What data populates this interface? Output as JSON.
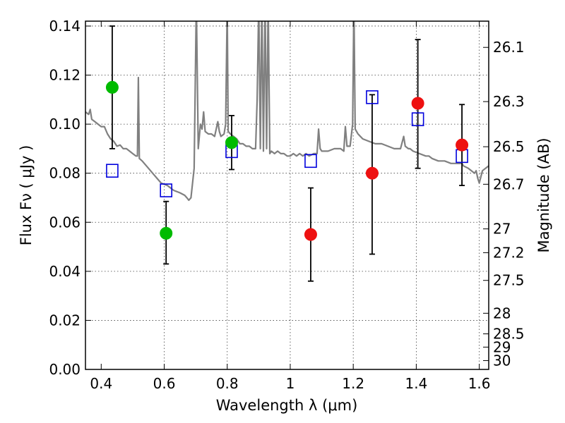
{
  "chart_data": {
    "type": "scatter",
    "xlabel": "Wavelength  λ (μm)",
    "ylabel": "Flux  Fν  ( μJy )",
    "ylabel_right": "Magnitude (AB)",
    "xlim": [
      0.35,
      1.63
    ],
    "ylim": [
      0.0,
      0.142
    ],
    "grid": true,
    "x_ticks": [
      0.4,
      0.6,
      0.8,
      1.0,
      1.2,
      1.4,
      1.6
    ],
    "x_tick_labels": [
      "0.4",
      "0.6",
      "0.8",
      "1",
      "1.2",
      "1.4",
      "1.6"
    ],
    "y_ticks": [
      0.0,
      0.02,
      0.04,
      0.06,
      0.08,
      0.1,
      0.12,
      0.14
    ],
    "y_tick_labels": [
      "0.00",
      "0.02",
      "0.04",
      "0.06",
      "0.08",
      "0.10",
      "0.12",
      "0.14"
    ],
    "right_ticks": [
      {
        "label": "26.1",
        "flux": 0.1313
      },
      {
        "label": "26.3",
        "flux": 0.1092
      },
      {
        "label": "26.5",
        "flux": 0.0908
      },
      {
        "label": "26.7",
        "flux": 0.0755
      },
      {
        "label": "27",
        "flux": 0.0573
      },
      {
        "label": "27.2",
        "flux": 0.0476
      },
      {
        "label": "27.5",
        "flux": 0.0363
      },
      {
        "label": "28",
        "flux": 0.0229
      },
      {
        "label": "28.5",
        "flux": 0.0145
      },
      {
        "label": "29",
        "flux": 0.0091
      },
      {
        "label": "30",
        "flux": 0.0036
      }
    ],
    "series": [
      {
        "kind": "points_with_errors",
        "color": "#00bb00",
        "points": [
          {
            "x": 0.435,
            "y": 0.115,
            "err_lo": 0.09,
            "err_hi": 0.14
          },
          {
            "x": 0.606,
            "y": 0.0555,
            "err_lo": 0.043,
            "err_hi": 0.0685
          },
          {
            "x": 0.814,
            "y": 0.0925,
            "err_lo": 0.0815,
            "err_hi": 0.1035
          }
        ]
      },
      {
        "kind": "points_with_errors",
        "color": "#ee1111",
        "points": [
          {
            "x": 1.065,
            "y": 0.055,
            "err_lo": 0.036,
            "err_hi": 0.074
          },
          {
            "x": 1.26,
            "y": 0.08,
            "err_lo": 0.047,
            "err_hi": 0.112
          },
          {
            "x": 1.405,
            "y": 0.1085,
            "err_lo": 0.082,
            "err_hi": 0.1345
          },
          {
            "x": 1.545,
            "y": 0.0915,
            "err_lo": 0.075,
            "err_hi": 0.108
          }
        ]
      },
      {
        "kind": "model_squares",
        "color": "#0000dd",
        "points": [
          {
            "x": 0.435,
            "y": 0.081
          },
          {
            "x": 0.606,
            "y": 0.073
          },
          {
            "x": 0.814,
            "y": 0.089
          },
          {
            "x": 1.065,
            "y": 0.085
          },
          {
            "x": 1.26,
            "y": 0.111
          },
          {
            "x": 1.405,
            "y": 0.102
          },
          {
            "x": 1.545,
            "y": 0.087
          }
        ]
      },
      {
        "kind": "spectrum_line",
        "color": "#808080",
        "points": [
          [
            0.35,
            0.105
          ],
          [
            0.36,
            0.104
          ],
          [
            0.365,
            0.106
          ],
          [
            0.37,
            0.102
          ],
          [
            0.38,
            0.101
          ],
          [
            0.39,
            0.1
          ],
          [
            0.4,
            0.099
          ],
          [
            0.41,
            0.099
          ],
          [
            0.42,
            0.096
          ],
          [
            0.43,
            0.094
          ],
          [
            0.44,
            0.093
          ],
          [
            0.45,
            0.091
          ],
          [
            0.46,
            0.0915
          ],
          [
            0.47,
            0.09
          ],
          [
            0.48,
            0.09
          ],
          [
            0.49,
            0.089
          ],
          [
            0.5,
            0.088
          ],
          [
            0.51,
            0.087
          ],
          [
            0.515,
            0.087
          ],
          [
            0.518,
            0.119
          ],
          [
            0.521,
            0.086
          ],
          [
            0.53,
            0.085
          ],
          [
            0.55,
            0.082
          ],
          [
            0.57,
            0.079
          ],
          [
            0.59,
            0.076
          ],
          [
            0.61,
            0.075
          ],
          [
            0.63,
            0.073
          ],
          [
            0.65,
            0.072
          ],
          [
            0.665,
            0.071
          ],
          [
            0.672,
            0.07
          ],
          [
            0.678,
            0.069
          ],
          [
            0.685,
            0.07
          ],
          [
            0.695,
            0.082
          ],
          [
            0.702,
            0.15
          ],
          [
            0.708,
            0.09
          ],
          [
            0.715,
            0.1
          ],
          [
            0.72,
            0.098
          ],
          [
            0.725,
            0.105
          ],
          [
            0.73,
            0.097
          ],
          [
            0.74,
            0.096
          ],
          [
            0.75,
            0.096
          ],
          [
            0.76,
            0.095
          ],
          [
            0.77,
            0.101
          ],
          [
            0.775,
            0.097
          ],
          [
            0.78,
            0.095
          ],
          [
            0.79,
            0.096
          ],
          [
            0.795,
            0.1
          ],
          [
            0.8,
            0.148
          ],
          [
            0.803,
            0.097
          ],
          [
            0.81,
            0.096
          ],
          [
            0.82,
            0.095
          ],
          [
            0.83,
            0.094
          ],
          [
            0.84,
            0.092
          ],
          [
            0.85,
            0.092
          ],
          [
            0.86,
            0.091
          ],
          [
            0.87,
            0.091
          ],
          [
            0.88,
            0.09
          ],
          [
            0.89,
            0.09
          ],
          [
            0.895,
            0.11
          ],
          [
            0.9,
            0.15
          ],
          [
            0.905,
            0.09
          ],
          [
            0.91,
            0.15
          ],
          [
            0.915,
            0.089
          ],
          [
            0.92,
            0.15
          ],
          [
            0.925,
            0.09
          ],
          [
            0.93,
            0.15
          ],
          [
            0.935,
            0.088
          ],
          [
            0.94,
            0.089
          ],
          [
            0.95,
            0.088
          ],
          [
            0.96,
            0.089
          ],
          [
            0.97,
            0.088
          ],
          [
            0.98,
            0.088
          ],
          [
            0.99,
            0.087
          ],
          [
            1.0,
            0.087
          ],
          [
            1.01,
            0.088
          ],
          [
            1.02,
            0.087
          ],
          [
            1.03,
            0.088
          ],
          [
            1.04,
            0.087
          ],
          [
            1.05,
            0.088
          ],
          [
            1.06,
            0.087
          ],
          [
            1.075,
            0.088
          ],
          [
            1.085,
            0.088
          ],
          [
            1.09,
            0.098
          ],
          [
            1.095,
            0.09
          ],
          [
            1.1,
            0.089
          ],
          [
            1.12,
            0.089
          ],
          [
            1.14,
            0.09
          ],
          [
            1.16,
            0.09
          ],
          [
            1.17,
            0.089
          ],
          [
            1.175,
            0.099
          ],
          [
            1.18,
            0.091
          ],
          [
            1.19,
            0.091
          ],
          [
            1.198,
            0.1
          ],
          [
            1.202,
            0.15
          ],
          [
            1.206,
            0.098
          ],
          [
            1.215,
            0.096
          ],
          [
            1.23,
            0.094
          ],
          [
            1.25,
            0.093
          ],
          [
            1.27,
            0.092
          ],
          [
            1.29,
            0.092
          ],
          [
            1.31,
            0.091
          ],
          [
            1.33,
            0.09
          ],
          [
            1.35,
            0.09
          ],
          [
            1.36,
            0.095
          ],
          [
            1.365,
            0.091
          ],
          [
            1.375,
            0.09
          ],
          [
            1.38,
            0.09
          ],
          [
            1.39,
            0.089
          ],
          [
            1.41,
            0.088
          ],
          [
            1.43,
            0.087
          ],
          [
            1.44,
            0.087
          ],
          [
            1.45,
            0.086
          ],
          [
            1.47,
            0.085
          ],
          [
            1.49,
            0.085
          ],
          [
            1.51,
            0.084
          ],
          [
            1.53,
            0.084
          ],
          [
            1.545,
            0.084
          ],
          [
            1.55,
            0.083
          ],
          [
            1.565,
            0.082
          ],
          [
            1.575,
            0.081
          ],
          [
            1.585,
            0.08
          ],
          [
            1.59,
            0.081
          ],
          [
            1.595,
            0.078
          ],
          [
            1.6,
            0.076
          ],
          [
            1.61,
            0.081
          ],
          [
            1.62,
            0.082
          ],
          [
            1.63,
            0.083
          ]
        ]
      }
    ]
  }
}
